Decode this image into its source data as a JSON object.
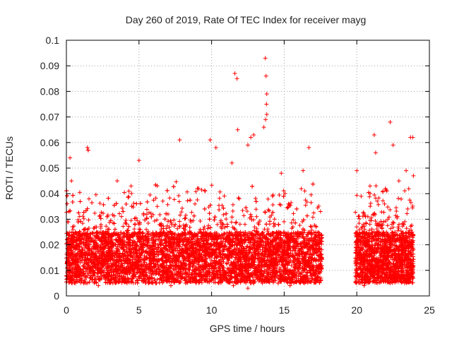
{
  "chart_data": {
    "type": "scatter",
    "title": "Day 260 of 2019, Rate Of TEC Index for receiver mayg",
    "xlabel": "GPS time / hours",
    "ylabel": "ROTI / TECUs",
    "xlim": [
      0,
      25
    ],
    "ylim": [
      0,
      0.1
    ],
    "x_ticks": [
      0,
      5,
      10,
      15,
      20,
      25
    ],
    "x_tick_labels": [
      "0",
      "5",
      "10",
      "15",
      "20",
      "25"
    ],
    "y_ticks": [
      0,
      0.01,
      0.02,
      0.03,
      0.04,
      0.05,
      0.06,
      0.07,
      0.08,
      0.09,
      0.1
    ],
    "y_tick_labels": [
      "0",
      "0.01",
      "0.02",
      "0.03",
      "0.04",
      "0.05",
      "0.06",
      "0.07",
      "0.08",
      "0.09",
      "0.1"
    ],
    "grid": true,
    "marker": "+",
    "series": [
      {
        "name": "ROTI",
        "color": "#ff0000",
        "coverage_hours": [
          [
            0,
            17.6
          ],
          [
            19.9,
            23.9
          ]
        ],
        "typical_range": [
          0.005,
          0.025
        ],
        "x": [
          0.05,
          0.1,
          0.15,
          0.25,
          0.35,
          0.45,
          0.6,
          0.8,
          1.0,
          1.5,
          2.0,
          2.5,
          3.0,
          3.5,
          3.9,
          4.3,
          4.8,
          5.0,
          5.5,
          6.0,
          6.5,
          7.0,
          7.5,
          7.8,
          8.5,
          9.0,
          9.5,
          9.9,
          10.3,
          10.8,
          11.4,
          11.6,
          11.9,
          12.3,
          12.7,
          13.1,
          13.6,
          13.7,
          13.8,
          14.2,
          14.8,
          15.3,
          15.6,
          16.3,
          16.7,
          17.2,
          17.5,
          20.0,
          20.3,
          20.6,
          20.9,
          21.3,
          21.8,
          22.2,
          22.5,
          22.9,
          23.4,
          23.7,
          23.9,
          0.2,
          0.5,
          0.9,
          1.3,
          1.7,
          2.3,
          2.8,
          3.3,
          3.7,
          4.1,
          4.6,
          5.2,
          5.8,
          6.3,
          6.8,
          7.3,
          7.9,
          8.8,
          9.3,
          10.1,
          10.6,
          11.2,
          11.7,
          12.1,
          12.6,
          13.0,
          13.4,
          14.0,
          14.5,
          15.1,
          15.8,
          16.1,
          16.6,
          17.0,
          17.4,
          20.2,
          20.7,
          21.1,
          21.5,
          22.0,
          22.7,
          23.1,
          23.5,
          23.8,
          0.3,
          1.2,
          2.2,
          3.2,
          4.2,
          5.3,
          6.2,
          7.2,
          8.2,
          9.2,
          10.5,
          11.5,
          12.5,
          13.5,
          14.4,
          15.4,
          16.4,
          17.3,
          20.5,
          21.2,
          22.3,
          23.3,
          11.75,
          11.8,
          13.75,
          13.8,
          13.78,
          13.72,
          1.45,
          1.5,
          22.3,
          21.2,
          23.85,
          12.9,
          12.5
        ],
        "y": [
          0.036,
          0.029,
          0.018,
          0.054,
          0.045,
          0.026,
          0.014,
          0.022,
          0.016,
          0.057,
          0.011,
          0.024,
          0.019,
          0.045,
          0.033,
          0.041,
          0.017,
          0.053,
          0.026,
          0.021,
          0.018,
          0.032,
          0.028,
          0.061,
          0.025,
          0.022,
          0.027,
          0.061,
          0.058,
          0.028,
          0.052,
          0.087,
          0.038,
          0.028,
          0.062,
          0.031,
          0.066,
          0.093,
          0.071,
          0.039,
          0.048,
          0.036,
          0.027,
          0.049,
          0.058,
          0.027,
          0.033,
          0.049,
          0.039,
          0.031,
          0.028,
          0.056,
          0.041,
          0.022,
          0.059,
          0.045,
          0.049,
          0.062,
          0.047,
          0.012,
          0.009,
          0.008,
          0.011,
          0.013,
          0.01,
          0.009,
          0.012,
          0.011,
          0.01,
          0.013,
          0.012,
          0.01,
          0.011,
          0.009,
          0.012,
          0.008,
          0.01,
          0.011,
          0.012,
          0.009,
          0.01,
          0.011,
          0.008,
          0.012,
          0.01,
          0.007,
          0.011,
          0.009,
          0.01,
          0.012,
          0.011,
          0.009,
          0.01,
          0.012,
          0.011,
          0.008,
          0.01,
          0.012,
          0.009,
          0.011,
          0.01,
          0.009,
          0.012,
          0.006,
          0.005,
          0.004,
          0.005,
          0.006,
          0.006,
          0.005,
          0.004,
          0.005,
          0.006,
          0.005,
          0.004,
          0.003,
          0.005,
          0.006,
          0.004,
          0.005,
          0.006,
          0.004,
          0.006,
          0.005,
          0.005,
          0.085,
          0.065,
          0.086,
          0.079,
          0.075,
          0.069,
          0.058,
          0.057,
          0.068,
          0.063,
          0.062,
          0.063,
          0.059
        ]
      }
    ]
  }
}
